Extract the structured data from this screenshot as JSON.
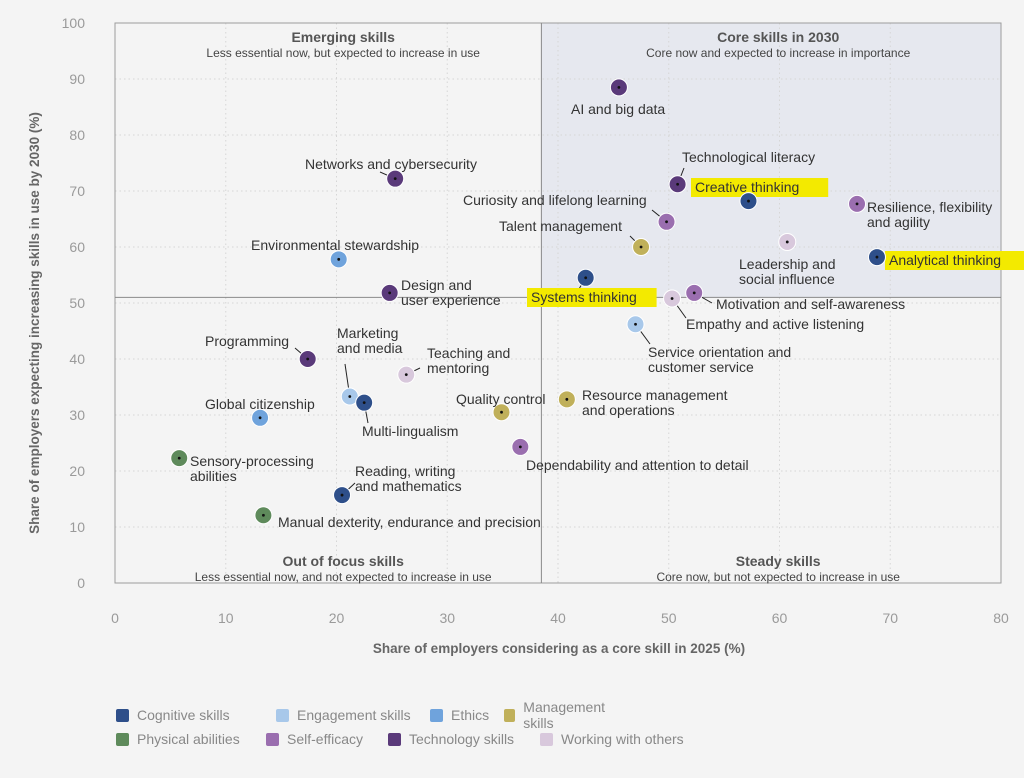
{
  "chart_data": {
    "type": "scatter",
    "xlabel": "Share of employers considering as a core skill in 2025 (%)",
    "ylabel": "Share of employers expecting increasing skills in use by 2030 (%)",
    "xlim": [
      0,
      80
    ],
    "ylim": [
      0,
      100
    ],
    "x_ticks": [
      "0",
      "10",
      "20",
      "30",
      "40",
      "50",
      "60",
      "70",
      "80"
    ],
    "y_ticks": [
      "0",
      "10",
      "20",
      "30",
      "40",
      "50",
      "60",
      "70",
      "80",
      "90",
      "100"
    ],
    "divider": {
      "x": 38.5,
      "y": 51
    },
    "quadrants": [
      {
        "title": "Emerging skills",
        "subtitle": "Less essential now, but expected to increase in use",
        "position": "top-left"
      },
      {
        "title": "Core skills in 2030",
        "subtitle": "Core now and expected to increase in importance",
        "position": "top-right"
      },
      {
        "title": "Out of focus skills",
        "subtitle": "Less essential now, and not expected to increase in use",
        "position": "bottom-left"
      },
      {
        "title": "Steady skills",
        "subtitle": "Core now, but not expected to increase in use",
        "position": "bottom-right"
      }
    ],
    "categories": [
      {
        "name": "Cognitive skills",
        "color": "#2e4f8a"
      },
      {
        "name": "Engagement skills",
        "color": "#a8c8ea"
      },
      {
        "name": "Ethics",
        "color": "#6fa3dc"
      },
      {
        "name": "Management skills",
        "color": "#c0b05a"
      },
      {
        "name": "Physical abilities",
        "color": "#5e8a5b"
      },
      {
        "name": "Self-efficacy",
        "color": "#9a6eaf"
      },
      {
        "name": "Technology skills",
        "color": "#5a3a7a"
      },
      {
        "name": "Working with others",
        "color": "#d8c8dc"
      }
    ],
    "points": [
      {
        "label": "AI and big data",
        "x": 45.5,
        "y": 88.5,
        "category": "Technology skills"
      },
      {
        "label": "Technological literacy",
        "x": 50.8,
        "y": 71.2,
        "category": "Technology skills"
      },
      {
        "label": "Creative thinking",
        "x": 57.2,
        "y": 68.2,
        "category": "Cognitive skills",
        "highlight": true
      },
      {
        "label": "Curiosity and lifelong learning",
        "x": 49.8,
        "y": 64.5,
        "category": "Self-efficacy"
      },
      {
        "label": "Resilience, flexibility\nand agility",
        "x": 67.0,
        "y": 67.7,
        "category": "Self-efficacy"
      },
      {
        "label": "Talent management",
        "x": 47.5,
        "y": 60.0,
        "category": "Management skills"
      },
      {
        "label": "Leadership and\nsocial influence",
        "x": 60.7,
        "y": 60.9,
        "category": "Working with others"
      },
      {
        "label": "Analytical thinking",
        "x": 68.8,
        "y": 58.2,
        "category": "Cognitive skills",
        "highlight": true
      },
      {
        "label": "Systems thinking",
        "x": 42.5,
        "y": 54.5,
        "category": "Cognitive skills",
        "highlight": true
      },
      {
        "label": "Motivation and self-awareness",
        "x": 52.3,
        "y": 51.8,
        "category": "Self-efficacy"
      },
      {
        "label": "Empathy and active listening",
        "x": 50.3,
        "y": 50.8,
        "category": "Working with others"
      },
      {
        "label": "Service orientation and\ncustomer service",
        "x": 47.0,
        "y": 46.2,
        "category": "Engagement skills"
      },
      {
        "label": "Resource management\nand operations",
        "x": 40.8,
        "y": 32.8,
        "category": "Management skills"
      },
      {
        "label": "Quality control",
        "x": 34.9,
        "y": 30.5,
        "category": "Management skills"
      },
      {
        "label": "Dependability and attention to detail",
        "x": 36.6,
        "y": 24.3,
        "category": "Self-efficacy"
      },
      {
        "label": "Networks and cybersecurity",
        "x": 25.3,
        "y": 72.2,
        "category": "Technology skills"
      },
      {
        "label": "Environmental stewardship",
        "x": 20.2,
        "y": 57.8,
        "category": "Ethics"
      },
      {
        "label": "Design and\nuser experience",
        "x": 24.8,
        "y": 51.8,
        "category": "Technology skills"
      },
      {
        "label": "Programming",
        "x": 17.4,
        "y": 40.0,
        "category": "Technology skills"
      },
      {
        "label": "Marketing\nand media",
        "x": 21.2,
        "y": 33.3,
        "category": "Engagement skills"
      },
      {
        "label": "Teaching and\nmentoring",
        "x": 26.3,
        "y": 37.2,
        "category": "Working with others"
      },
      {
        "label": "Multi-lingualism",
        "x": 22.5,
        "y": 32.2,
        "category": "Cognitive skills"
      },
      {
        "label": "Global citizenship",
        "x": 13.1,
        "y": 29.5,
        "category": "Ethics"
      },
      {
        "label": "Sensory-processing\nabilities",
        "x": 5.8,
        "y": 22.3,
        "category": "Physical abilities"
      },
      {
        "label": "Reading, writing\nand mathematics",
        "x": 20.5,
        "y": 15.7,
        "category": "Cognitive skills"
      },
      {
        "label": "Manual dexterity, endurance and precision",
        "x": 13.4,
        "y": 12.1,
        "category": "Physical abilities"
      }
    ]
  },
  "legend": {
    "rows": [
      [
        "Cognitive skills",
        "Engagement skills",
        "Ethics",
        "Management skills"
      ],
      [
        "Physical abilities",
        "Self-efficacy",
        "Technology skills",
        "Working with others"
      ]
    ]
  }
}
